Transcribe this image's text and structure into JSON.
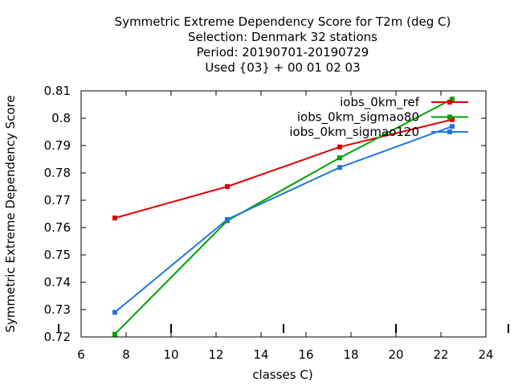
{
  "chart_data": {
    "type": "line",
    "title_lines": [
      "Symmetric Extreme Dependency Score  for T2m (deg C)",
      "Selection: Denmark     32 stations",
      "Period: 20190701-20190729",
      "Used {03} + 00 01 02 03"
    ],
    "xlabel": "classes C)",
    "ylabel": "Symmetric Extreme Dependency Score",
    "xlim": [
      6,
      24
    ],
    "ylim": [
      0.72,
      0.81
    ],
    "x_ticks": [
      "6",
      "8",
      "10",
      "12",
      "14",
      "16",
      "18",
      "20",
      "22",
      "24"
    ],
    "y_ticks": [
      "0.72",
      "0.73",
      "0.74",
      "0.75",
      "0.76",
      "0.77",
      "0.78",
      "0.79",
      "0.8",
      "0.81"
    ],
    "legend_position": "top-right",
    "grid": false,
    "series": [
      {
        "name": "iobs_0km_ref",
        "color": "#e00000",
        "marker": "square",
        "x": [
          7.5,
          12.5,
          17.5,
          22.5
        ],
        "y": [
          0.7635,
          0.775,
          0.7895,
          0.7995
        ]
      },
      {
        "name": "iobs_0km_sigmao80",
        "color": "#00a000",
        "marker": "square",
        "x": [
          7.5,
          12.5,
          17.5,
          22.5
        ],
        "y": [
          0.721,
          0.7625,
          0.7855,
          0.807
        ]
      },
      {
        "name": "iobs_0km_sigmao120",
        "color": "#1e78dc",
        "marker": "square",
        "x": [
          7.5,
          12.5,
          17.5,
          22.5
        ],
        "y": [
          0.729,
          0.763,
          0.782,
          0.797
        ]
      }
    ]
  }
}
